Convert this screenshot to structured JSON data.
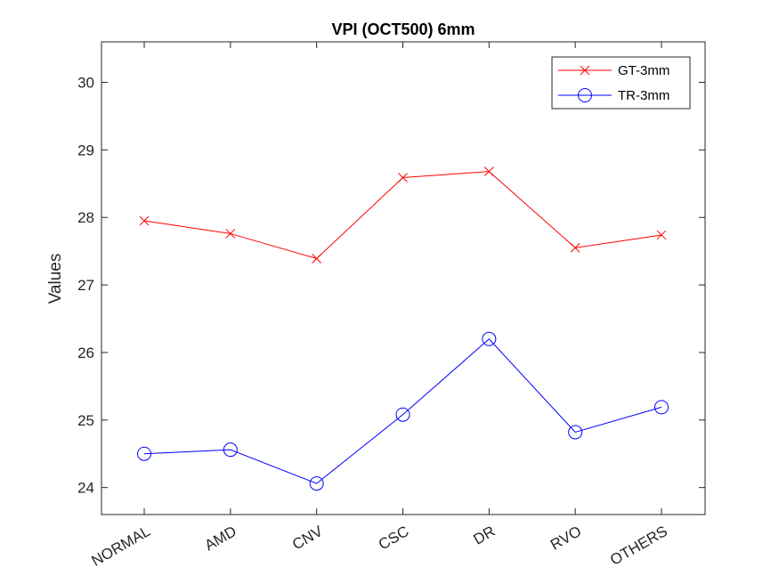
{
  "chart_data": {
    "type": "line",
    "title": "VPI (OCT500) 6mm",
    "xlabel": "",
    "ylabel": "Values",
    "categories": [
      "NORMAL",
      "AMD",
      "CNV",
      "CSC",
      "DR",
      "RVO",
      "OTHERS"
    ],
    "ylim": [
      23.6,
      30.6
    ],
    "yticks": [
      24,
      25,
      26,
      27,
      28,
      29,
      30
    ],
    "grid": false,
    "legend_position": "top-right",
    "series": [
      {
        "name": "GT-3mm",
        "color": "#ff0000",
        "marker": "x",
        "values": [
          27.95,
          27.76,
          27.39,
          28.59,
          28.68,
          27.55,
          27.74
        ]
      },
      {
        "name": "TR-3mm",
        "color": "#0000ff",
        "marker": "circle",
        "values": [
          24.5,
          24.56,
          24.06,
          25.08,
          26.2,
          24.82,
          25.19
        ]
      }
    ]
  }
}
